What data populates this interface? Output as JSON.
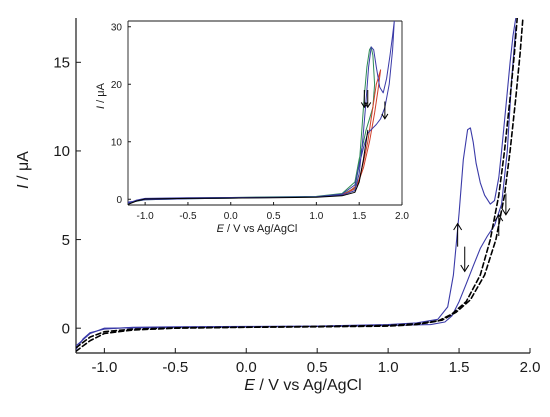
{
  "chart_data": [
    {
      "id": "main",
      "type": "line",
      "title": "",
      "xlabel_var": "E",
      "xlabel_rest": " / V vs Ag/AgCl",
      "ylabel_var": "I",
      "ylabel_rest": " / μA",
      "xlim": [
        -1.2,
        2.0
      ],
      "ylim": [
        -1.4,
        17.5
      ],
      "xticks": [
        -1.0,
        -0.5,
        0.0,
        0.5,
        1.0,
        1.5,
        2.0
      ],
      "xtick_labels": [
        "-1.0",
        "-0.5",
        "0.0",
        "0.5",
        "1.0",
        "1.5",
        "2.0"
      ],
      "yticks": [
        0,
        5,
        10,
        15
      ],
      "ytick_labels": [
        "0",
        "5",
        "10",
        "15"
      ],
      "grid": false,
      "series": [
        {
          "color": "#3a3aa8",
          "dash": false,
          "x": [
            -1.2,
            -1.15,
            -1.1,
            -1.0,
            -0.8,
            -0.5,
            0.0,
            0.5,
            1.0,
            1.2,
            1.35,
            1.42,
            1.46,
            1.5,
            1.53,
            1.56,
            1.58,
            1.6,
            1.62,
            1.65,
            1.68,
            1.72,
            1.75,
            1.78,
            1.8,
            1.83,
            1.86,
            1.88,
            1.9
          ],
          "y": [
            -1.2,
            -0.6,
            -0.25,
            -0.05,
            0.05,
            0.08,
            0.1,
            0.12,
            0.2,
            0.3,
            0.5,
            1.2,
            3.0,
            6.5,
            9.5,
            11.2,
            11.3,
            10.5,
            9.3,
            8.2,
            7.5,
            7.0,
            7.2,
            8.5,
            10.0,
            12.5,
            15.0,
            16.5,
            17.5
          ]
        },
        {
          "color": "#3a3aa8",
          "dash": false,
          "x": [
            1.9,
            1.87,
            1.84,
            1.8,
            1.75,
            1.7,
            1.65,
            1.6,
            1.55,
            1.5,
            1.45,
            1.4,
            1.3,
            1.0,
            0.5,
            0.0,
            -0.5,
            -1.0,
            -1.1,
            -1.2
          ],
          "y": [
            17.0,
            14.0,
            10.0,
            7.0,
            5.8,
            5.2,
            4.5,
            3.5,
            2.5,
            1.5,
            0.7,
            0.35,
            0.2,
            0.15,
            0.1,
            0.08,
            0.05,
            0.0,
            -0.3,
            -1.0
          ]
        },
        {
          "color": "#000000",
          "dash": true,
          "x": [
            -1.2,
            -1.1,
            -1.0,
            -0.8,
            -0.5,
            0.0,
            0.5,
            1.0,
            1.2,
            1.35,
            1.45,
            1.55,
            1.65,
            1.72,
            1.78,
            1.82,
            1.86,
            1.89,
            1.91
          ],
          "y": [
            -1.3,
            -0.7,
            -0.3,
            -0.1,
            0.0,
            0.05,
            0.08,
            0.12,
            0.2,
            0.4,
            0.8,
            1.5,
            3.0,
            5.0,
            7.5,
            10.0,
            13.0,
            15.5,
            17.5
          ]
        },
        {
          "color": "#000000",
          "dash": true,
          "x": [
            -1.2,
            -1.1,
            -1.0,
            -0.8,
            -0.5,
            0.0,
            0.5,
            1.0,
            1.2,
            1.38,
            1.48,
            1.58,
            1.68,
            1.76,
            1.82,
            1.86,
            1.9,
            1.93,
            1.95
          ],
          "y": [
            -1.1,
            -0.5,
            -0.2,
            -0.05,
            0.02,
            0.06,
            0.1,
            0.15,
            0.25,
            0.45,
            0.9,
            1.6,
            3.0,
            5.0,
            7.5,
            10.0,
            13.0,
            15.5,
            17.5
          ]
        }
      ],
      "arrows": [
        {
          "x": 1.49,
          "y_from": 4.6,
          "y_to": 5.9,
          "color": "#000000"
        },
        {
          "x": 1.54,
          "y_from": 4.6,
          "y_to": 3.2,
          "color": "#000000"
        },
        {
          "x": 1.78,
          "y_from": 5.2,
          "y_to": 6.4,
          "color": "#000000"
        },
        {
          "x": 1.83,
          "y_from": 7.6,
          "y_to": 6.4,
          "color": "#000000"
        }
      ]
    },
    {
      "id": "inset",
      "type": "line",
      "title": "",
      "xlabel_var": "E",
      "xlabel_rest": " / V vs Ag/AgCl",
      "ylabel_var": "I",
      "ylabel_rest": " / μA",
      "xlim": [
        -1.2,
        2.0
      ],
      "ylim": [
        -1.0,
        31
      ],
      "xticks": [
        -1.0,
        -0.5,
        0.0,
        0.5,
        1.0,
        1.5,
        2.0
      ],
      "xtick_labels": [
        "-1.0",
        "-0.5",
        "0.0",
        "0.5",
        "1.0",
        "1.5",
        "2.0"
      ],
      "yticks": [
        0,
        10,
        20,
        30
      ],
      "ytick_labels": [
        "0",
        "10",
        "20",
        "30"
      ],
      "grid": false,
      "series": [
        {
          "color": "#2e8b57",
          "dash": false,
          "x": [
            -1.2,
            -1.1,
            -1.0,
            -0.5,
            0.0,
            0.5,
            1.0,
            1.3,
            1.45,
            1.5,
            1.53,
            1.56,
            1.59,
            1.62,
            1.64,
            1.66,
            1.68,
            1.66,
            1.62,
            1.58,
            1.55,
            1.5,
            1.45,
            1.3,
            1.0,
            0.5,
            0.0,
            -0.5,
            -1.0,
            -1.2
          ],
          "y": [
            -0.8,
            -0.2,
            0.1,
            0.2,
            0.3,
            0.4,
            0.5,
            0.8,
            2.0,
            6.0,
            12.0,
            18.0,
            23.0,
            26.0,
            26.5,
            25.0,
            20.0,
            16.0,
            14.0,
            12.0,
            10.0,
            7.0,
            3.0,
            1.0,
            0.5,
            0.3,
            0.2,
            0.1,
            -0.1,
            -0.6
          ]
        },
        {
          "color": "#d0402a",
          "dash": false,
          "x": [
            1.3,
            1.45,
            1.5,
            1.55,
            1.6,
            1.65,
            1.7,
            1.75,
            1.72,
            1.68,
            1.62,
            1.55,
            1.48,
            1.35
          ],
          "y": [
            0.8,
            1.8,
            3.5,
            6.5,
            10.0,
            15.0,
            20.0,
            22.5,
            19.0,
            15.0,
            10.0,
            5.5,
            2.5,
            1.0
          ]
        },
        {
          "color": "#3a3aa8",
          "dash": false,
          "x": [
            -1.2,
            -1.1,
            -1.0,
            -0.5,
            0.0,
            0.5,
            1.0,
            1.3,
            1.45,
            1.5,
            1.54,
            1.58,
            1.61,
            1.64,
            1.67,
            1.7,
            1.74,
            1.78,
            1.82,
            1.86,
            1.89,
            1.91,
            1.89,
            1.85,
            1.8,
            1.75,
            1.7,
            1.6,
            1.55,
            1.5,
            1.45,
            1.3,
            1.0,
            0.5,
            0.0,
            -0.5,
            -1.0,
            -1.2
          ],
          "y": [
            -0.7,
            -0.15,
            0.15,
            0.25,
            0.3,
            0.35,
            0.45,
            0.7,
            1.5,
            4.5,
            10.0,
            17.0,
            23.0,
            26.5,
            26.0,
            23.0,
            19.5,
            18.5,
            21.0,
            25.0,
            28.5,
            31.0,
            26.0,
            20.0,
            16.0,
            14.0,
            13.0,
            11.5,
            9.0,
            6.0,
            2.5,
            0.9,
            0.45,
            0.3,
            0.2,
            0.1,
            -0.1,
            -0.5
          ]
        },
        {
          "color": "#000000",
          "dash": false,
          "x": [
            -1.2,
            -1.1,
            -1.0,
            -0.5,
            0.0,
            0.5,
            1.0,
            1.3,
            1.45,
            1.5,
            1.55,
            1.6
          ],
          "y": [
            -0.9,
            -0.3,
            0.05,
            0.15,
            0.2,
            0.25,
            0.35,
            0.6,
            1.2,
            3.0,
            7.0,
            12.0
          ]
        }
      ],
      "arrows": [
        {
          "x": 1.56,
          "y_from": 19.0,
          "y_to": 16.0,
          "color": "#000000"
        },
        {
          "x": 1.6,
          "y_from": 19.0,
          "y_to": 16.0,
          "color": "#000000"
        },
        {
          "x": 1.8,
          "y_from": 17.0,
          "y_to": 14.0,
          "color": "#000000"
        }
      ]
    }
  ]
}
